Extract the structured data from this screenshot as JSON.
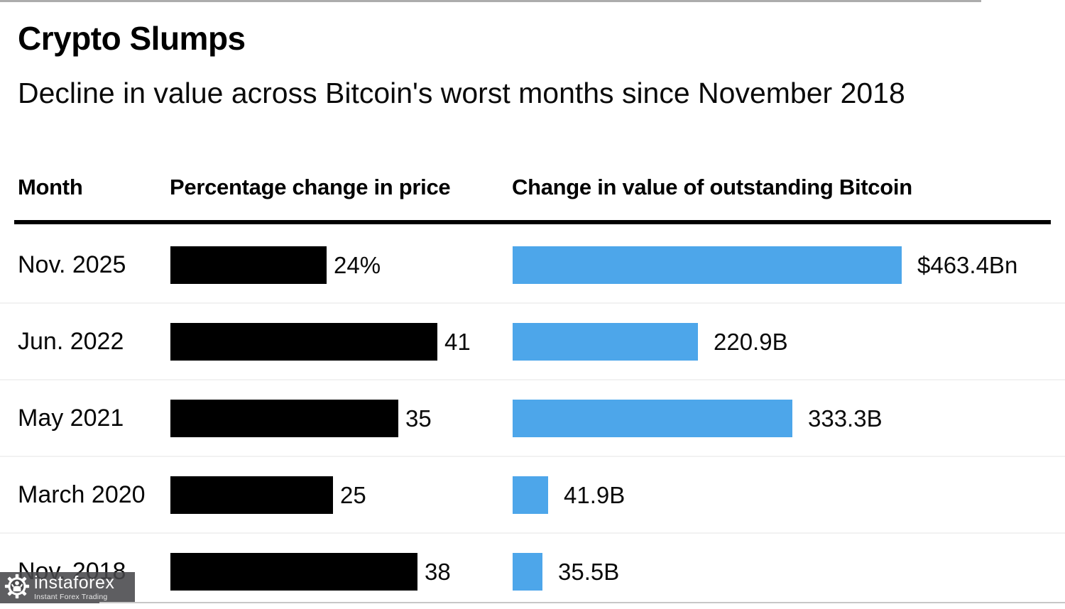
{
  "header": {
    "title": "Crypto Slumps",
    "subtitle": "Decline in value across Bitcoin's worst months since November 2018"
  },
  "table": {
    "columns": [
      "Month",
      "Percentage change in price",
      "Change in value of outstanding Bitcoin"
    ]
  },
  "chart_data": {
    "type": "bar",
    "orientation": "horizontal",
    "title": "Crypto Slumps",
    "subtitle": "Decline in value across Bitcoin's worst months since November 2018",
    "categories": [
      "Nov. 2025",
      "Jun. 2022",
      "May 2021",
      "March 2020",
      "Nov. 2018"
    ],
    "series": [
      {
        "name": "Percentage change in price",
        "values": [
          24,
          41,
          35,
          25,
          38
        ],
        "labels": [
          "24%",
          "41",
          "35",
          "25",
          "38"
        ],
        "color": "#000000",
        "axis_range": [
          0,
          48
        ],
        "grid": false,
        "value_labels_position": "end of bar"
      },
      {
        "name": "Change in value of outstanding Bitcoin",
        "values": [
          463.4,
          220.9,
          333.3,
          41.9,
          35.5
        ],
        "labels": [
          "$463.4Bn",
          "220.9B",
          "333.3B",
          "41.9B",
          "35.5B"
        ],
        "unit": "billion USD",
        "color": "#4DA6EA",
        "axis_range": [
          0,
          560
        ],
        "grid": false,
        "value_labels_position": "end of bar"
      }
    ],
    "legend": "none"
  },
  "watermark": {
    "brand": "instaforex",
    "tagline": "Instant Forex Trading",
    "icon": "gear-person-icon",
    "bg_color": "#48484b",
    "text_color": "#ffffff"
  },
  "colors": {
    "pct_bar": "#000000",
    "value_bar": "#4DA6EA",
    "header_rule": "#000000",
    "row_separator": "#f2f2f2",
    "background": "#ffffff"
  }
}
